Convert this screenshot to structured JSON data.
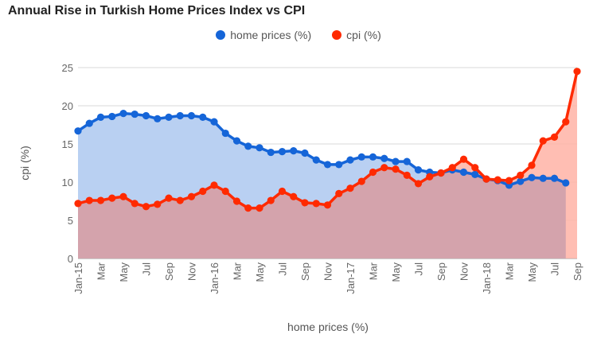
{
  "colors": {
    "home": "#1565d8",
    "cpi": "#ff2a00",
    "home_fill": "#b9d0f2",
    "cpi_fill_overlap": "#d4a3ac",
    "cpi_fill": "#ffb3a6",
    "grid": "#d9d9d9"
  },
  "chart_data": {
    "type": "area",
    "title": "Annual Rise in Turkish Home Prices Index vs CPI",
    "xlabel": "home prices (%)",
    "ylabel": "cpi (%)",
    "ylim": [
      0,
      25
    ],
    "y_ticks": [
      "0",
      "5",
      "10",
      "15",
      "20",
      "25"
    ],
    "x_ticks": [
      "Jan-15",
      "Mar",
      "May",
      "Jul",
      "Sep",
      "Nov",
      "Jan-16",
      "Mar",
      "May",
      "Jul",
      "Sep",
      "Nov",
      "Jan-17",
      "Mar",
      "May",
      "Jul",
      "Sep",
      "Nov",
      "Jan-18",
      "Mar",
      "May",
      "Jul",
      "Sep"
    ],
    "x": [
      "Jan-15",
      "Feb-15",
      "Mar-15",
      "Apr-15",
      "May-15",
      "Jun-15",
      "Jul-15",
      "Aug-15",
      "Sep-15",
      "Oct-15",
      "Nov-15",
      "Dec-15",
      "Jan-16",
      "Feb-16",
      "Mar-16",
      "Apr-16",
      "May-16",
      "Jun-16",
      "Jul-16",
      "Aug-16",
      "Sep-16",
      "Oct-16",
      "Nov-16",
      "Dec-16",
      "Jan-17",
      "Feb-17",
      "Mar-17",
      "Apr-17",
      "May-17",
      "Jun-17",
      "Jul-17",
      "Aug-17",
      "Sep-17",
      "Oct-17",
      "Nov-17",
      "Dec-17",
      "Jan-18",
      "Feb-18",
      "Mar-18",
      "Apr-18",
      "May-18",
      "Jun-18",
      "Jul-18",
      "Aug-18",
      "Sep-18"
    ],
    "legend": {
      "position": "top"
    },
    "grid": true,
    "series": [
      {
        "name": "home prices (%)",
        "values": [
          16.7,
          17.7,
          18.5,
          18.6,
          19.0,
          18.9,
          18.7,
          18.3,
          18.5,
          18.7,
          18.7,
          18.5,
          17.9,
          16.4,
          15.4,
          14.7,
          14.5,
          13.9,
          14.0,
          14.1,
          13.8,
          12.9,
          12.3,
          12.3,
          12.9,
          13.3,
          13.3,
          13.1,
          12.7,
          12.7,
          11.6,
          11.3,
          11.2,
          11.6,
          11.3,
          11.0,
          10.4,
          10.2,
          9.6,
          10.1,
          10.6,
          10.5,
          10.5,
          9.9,
          null
        ]
      },
      {
        "name": "cpi (%)",
        "values": [
          7.2,
          7.6,
          7.6,
          7.9,
          8.1,
          7.2,
          6.8,
          7.1,
          7.9,
          7.6,
          8.1,
          8.8,
          9.6,
          8.8,
          7.5,
          6.6,
          6.6,
          7.6,
          8.8,
          8.1,
          7.3,
          7.2,
          7.0,
          8.5,
          9.2,
          10.1,
          11.3,
          11.9,
          11.7,
          10.9,
          9.8,
          10.7,
          11.2,
          11.9,
          13.0,
          11.9,
          10.4,
          10.3,
          10.2,
          10.9,
          12.2,
          15.4,
          15.9,
          17.9,
          24.5
        ]
      }
    ]
  }
}
